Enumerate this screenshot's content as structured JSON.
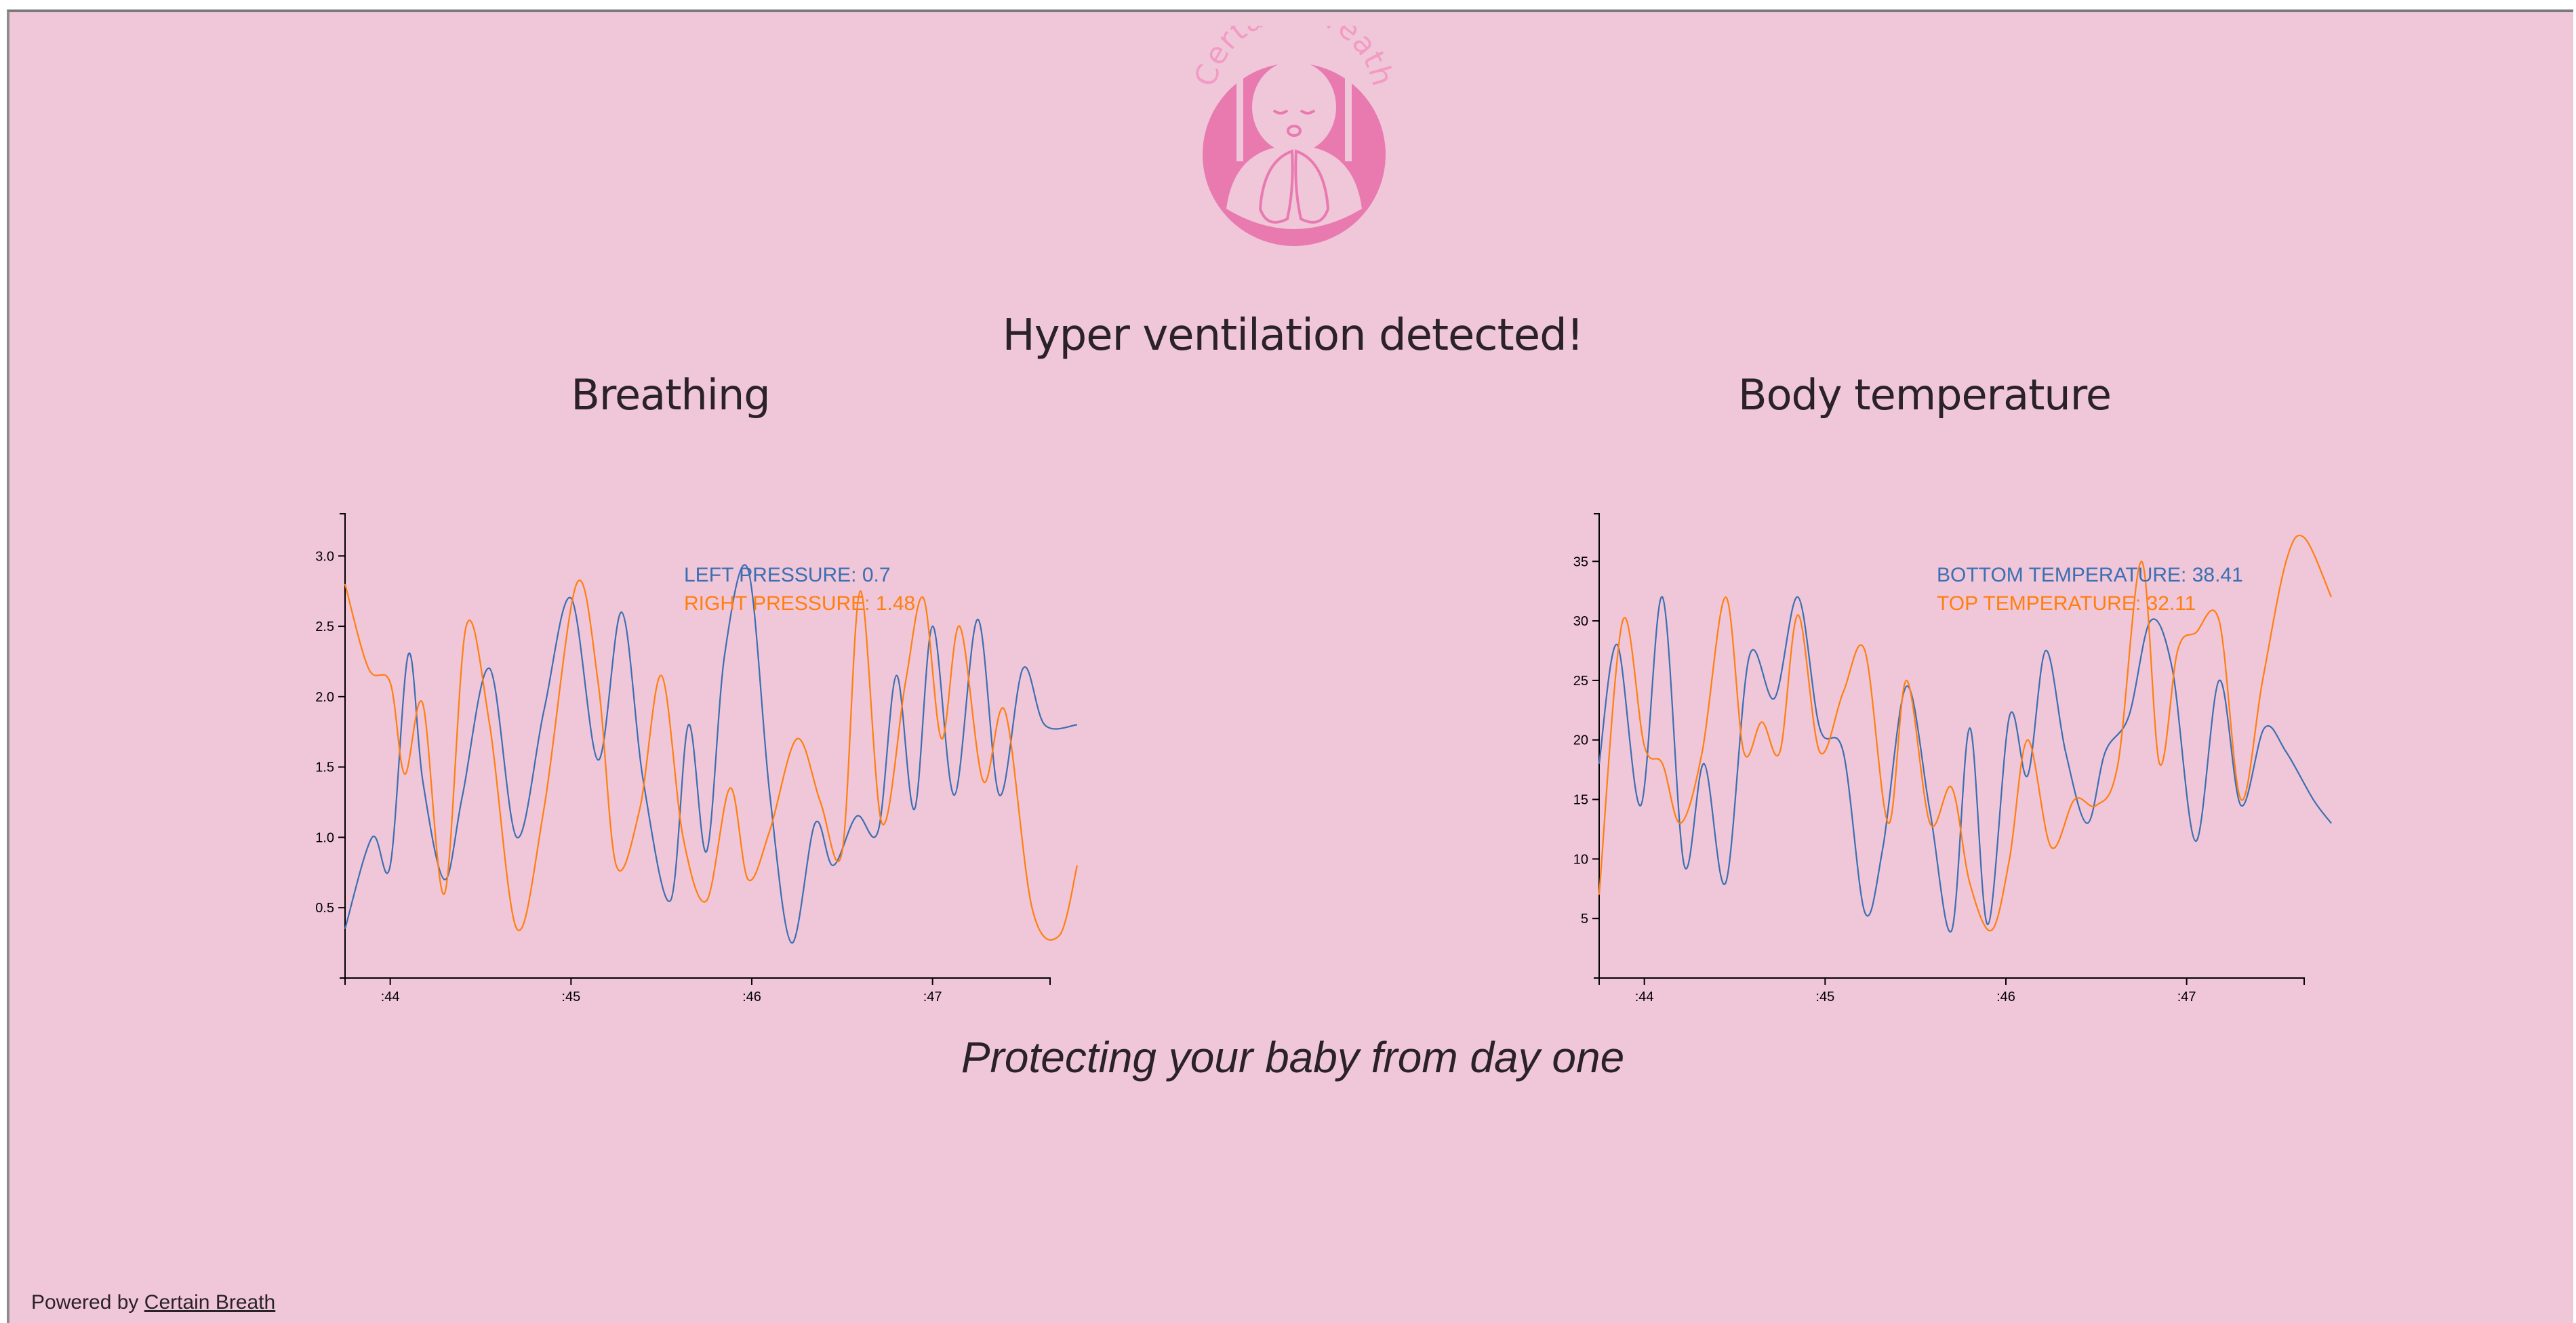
{
  "logo": {
    "text": "Certain Breath",
    "icon": "baby-lungs-logo",
    "color": "#e87ab0"
  },
  "alert": {
    "title": "Hyper ventilation detected!"
  },
  "breathing": {
    "title": "Breathing",
    "readout": {
      "left_label": "LEFT PRESSURE: 0.7",
      "right_label": "RIGHT PRESSURE: 1.48"
    }
  },
  "temperature": {
    "title": "Body temperature",
    "readout": {
      "bottom_label": "BOTTOM TEMPERATURE: 38.41",
      "top_label": "TOP TEMPERATURE: 32.11"
    }
  },
  "tagline": "Protecting your baby from day one",
  "footer": {
    "prefix": "Powered by",
    "link": "Certain Breath"
  },
  "colors": {
    "background": "#f0c6d9",
    "series_a": "#3b6fb2",
    "series_b": "#ff7f0e"
  },
  "chart_data": [
    {
      "type": "line",
      "x_ticks": [
        ":44",
        ":45",
        ":46",
        ":47"
      ],
      "y_ticks": [
        "0.5",
        "1.0",
        "1.5",
        "2.0",
        "2.5",
        "3.0"
      ],
      "ylim": [
        0,
        3.3
      ],
      "xlim": [
        43.75,
        47.8
      ],
      "series": [
        {
          "name": "LEFT PRESSURE",
          "x": [
            43.75,
            43.9,
            44.0,
            44.1,
            44.18,
            44.3,
            44.4,
            44.55,
            44.7,
            44.85,
            45.0,
            45.15,
            45.28,
            45.4,
            45.55,
            45.65,
            45.75,
            45.85,
            45.98,
            46.1,
            46.22,
            46.35,
            46.45,
            46.58,
            46.7,
            46.8,
            46.9,
            47.0,
            47.12,
            47.25,
            47.37,
            47.5,
            47.62,
            47.8
          ],
          "y": [
            0.35,
            1.0,
            0.8,
            2.3,
            1.4,
            0.7,
            1.3,
            2.2,
            1.0,
            1.9,
            2.7,
            1.55,
            2.6,
            1.4,
            0.55,
            1.8,
            0.9,
            2.3,
            2.9,
            1.3,
            0.25,
            1.1,
            0.8,
            1.15,
            1.05,
            2.15,
            1.2,
            2.5,
            1.3,
            2.55,
            1.3,
            2.2,
            1.8,
            1.8
          ]
        },
        {
          "name": "RIGHT PRESSURE",
          "x": [
            43.75,
            43.88,
            44.0,
            44.08,
            44.18,
            44.3,
            44.42,
            44.55,
            44.7,
            44.85,
            45.03,
            45.15,
            45.25,
            45.38,
            45.5,
            45.62,
            45.75,
            45.88,
            45.98,
            46.1,
            46.25,
            46.38,
            46.5,
            46.6,
            46.72,
            46.85,
            46.95,
            47.05,
            47.15,
            47.28,
            47.4,
            47.55,
            47.7,
            47.8
          ],
          "y": [
            2.8,
            2.2,
            2.1,
            1.45,
            1.95,
            0.6,
            2.5,
            1.8,
            0.35,
            1.2,
            2.8,
            2.1,
            0.8,
            1.2,
            2.15,
            1.0,
            0.55,
            1.35,
            0.7,
            1.05,
            1.7,
            1.25,
            0.9,
            2.75,
            1.1,
            2.1,
            2.7,
            1.7,
            2.5,
            1.4,
            1.9,
            0.5,
            0.3,
            0.8
          ]
        }
      ]
    },
    {
      "type": "line",
      "x_ticks": [
        ":44",
        ":45",
        ":46",
        ":47"
      ],
      "y_ticks": [
        "5",
        "10",
        "15",
        "20",
        "25",
        "30",
        "35"
      ],
      "ylim": [
        0,
        39
      ],
      "xlim": [
        43.75,
        47.8
      ],
      "series": [
        {
          "name": "BOTTOM TEMPERATURE",
          "x": [
            43.75,
            43.85,
            43.98,
            44.1,
            44.22,
            44.33,
            44.45,
            44.58,
            44.72,
            44.85,
            44.97,
            45.1,
            45.22,
            45.32,
            45.45,
            45.58,
            45.7,
            45.8,
            45.9,
            46.02,
            46.12,
            46.22,
            46.33,
            46.45,
            46.55,
            46.68,
            46.8,
            46.92,
            47.05,
            47.18,
            47.3,
            47.43,
            47.55,
            47.7,
            47.8
          ],
          "y": [
            18,
            28,
            14.5,
            32,
            9.5,
            18,
            8,
            27,
            23.5,
            32,
            21,
            19,
            5.5,
            11,
            24.5,
            14,
            4,
            21,
            4.5,
            22,
            17,
            27.5,
            19,
            13,
            19,
            22,
            30,
            26,
            11.5,
            25,
            14.5,
            21,
            19,
            15,
            13
          ]
        },
        {
          "name": "TOP TEMPERATURE",
          "x": [
            43.75,
            43.88,
            44.0,
            44.1,
            44.2,
            44.32,
            44.45,
            44.55,
            44.65,
            44.75,
            44.85,
            44.97,
            45.1,
            45.22,
            45.35,
            45.45,
            45.58,
            45.7,
            45.8,
            45.92,
            46.02,
            46.12,
            46.25,
            46.38,
            46.5,
            46.62,
            46.75,
            46.85,
            46.95,
            47.05,
            47.18,
            47.3,
            47.42,
            47.55,
            47.65,
            47.8
          ],
          "y": [
            7,
            30,
            19.5,
            18,
            13,
            19,
            32,
            19,
            21.5,
            19,
            30.5,
            19,
            24,
            27.5,
            13,
            25,
            13,
            16,
            8,
            4,
            10,
            20,
            11,
            15,
            14.5,
            18,
            35,
            18,
            27.5,
            29,
            30,
            15,
            25,
            35,
            37,
            32
          ]
        }
      ]
    }
  ]
}
